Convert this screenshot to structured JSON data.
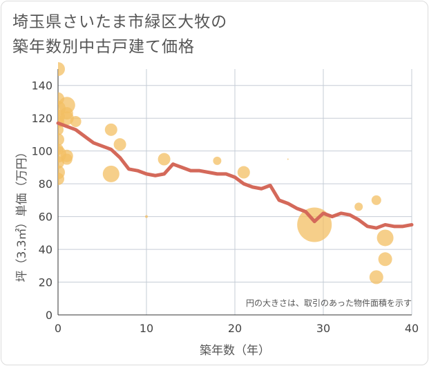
{
  "title_line1": "埼玉県さいたま市緑区大牧の",
  "title_line2": "築年数別中古戸建て価格",
  "colors": {
    "line": "#d4695a",
    "bubble": "#f3bf63",
    "grid": "#c5ccd6",
    "text": "#555555"
  },
  "chart_data": {
    "type": "scatter",
    "xlabel": "築年数（年）",
    "ylabel": "坪（3.3㎡）単価（万円）",
    "xlim": [
      0,
      40
    ],
    "ylim": [
      0,
      150
    ],
    "xticks": [
      0,
      10,
      20,
      30,
      40
    ],
    "yticks": [
      0,
      20,
      40,
      60,
      80,
      100,
      120,
      140
    ],
    "vertical_grid": true,
    "note": "円の大きさは、取引のあった物件面積を示す",
    "trend_line": {
      "x": [
        0,
        1,
        2,
        3,
        4,
        5,
        6,
        7,
        8,
        9,
        10,
        11,
        12,
        13,
        14,
        15,
        16,
        17,
        18,
        19,
        20,
        21,
        22,
        23,
        24,
        25,
        26,
        27,
        28,
        29,
        30,
        31,
        32,
        33,
        34,
        35,
        36,
        37,
        38,
        39,
        40
      ],
      "y": [
        117,
        115,
        113,
        109,
        105,
        103,
        101,
        96,
        89,
        88,
        86,
        85,
        86,
        92,
        90,
        88,
        88,
        87,
        86,
        86,
        84,
        80,
        78,
        77,
        79,
        70,
        68,
        65,
        63,
        57,
        62,
        60,
        62,
        61,
        58,
        54,
        53,
        55,
        54,
        54,
        55
      ]
    },
    "bubbles": [
      {
        "x": 0,
        "y": 150,
        "size": 10
      },
      {
        "x": 0,
        "y": 132,
        "size": 9
      },
      {
        "x": 0,
        "y": 126,
        "size": 11
      },
      {
        "x": 0,
        "y": 121,
        "size": 10
      },
      {
        "x": 0,
        "y": 118,
        "size": 9
      },
      {
        "x": 0,
        "y": 113,
        "size": 8
      },
      {
        "x": 0,
        "y": 107,
        "size": 9
      },
      {
        "x": 0,
        "y": 101,
        "size": 8
      },
      {
        "x": 0,
        "y": 98,
        "size": 12
      },
      {
        "x": 0,
        "y": 93,
        "size": 9
      },
      {
        "x": 0,
        "y": 87,
        "size": 10
      },
      {
        "x": 0,
        "y": 83,
        "size": 9
      },
      {
        "x": 1,
        "y": 128,
        "size": 12
      },
      {
        "x": 1,
        "y": 123,
        "size": 9
      },
      {
        "x": 1,
        "y": 120,
        "size": 10
      },
      {
        "x": 1,
        "y": 97,
        "size": 9
      },
      {
        "x": 1,
        "y": 95,
        "size": 8
      },
      {
        "x": 2,
        "y": 118,
        "size": 8
      },
      {
        "x": 6,
        "y": 113,
        "size": 9
      },
      {
        "x": 6,
        "y": 86,
        "size": 12
      },
      {
        "x": 7,
        "y": 104,
        "size": 9
      },
      {
        "x": 10,
        "y": 60,
        "size": 2
      },
      {
        "x": 12,
        "y": 95,
        "size": 9
      },
      {
        "x": 18,
        "y": 94,
        "size": 6
      },
      {
        "x": 21,
        "y": 87,
        "size": 9
      },
      {
        "x": 26,
        "y": 95,
        "size": 1
      },
      {
        "x": 29,
        "y": 55,
        "size": 25
      },
      {
        "x": 34,
        "y": 66,
        "size": 6
      },
      {
        "x": 36,
        "y": 70,
        "size": 7
      },
      {
        "x": 37,
        "y": 47,
        "size": 12
      },
      {
        "x": 37,
        "y": 34,
        "size": 10
      },
      {
        "x": 36,
        "y": 23,
        "size": 10
      }
    ]
  }
}
